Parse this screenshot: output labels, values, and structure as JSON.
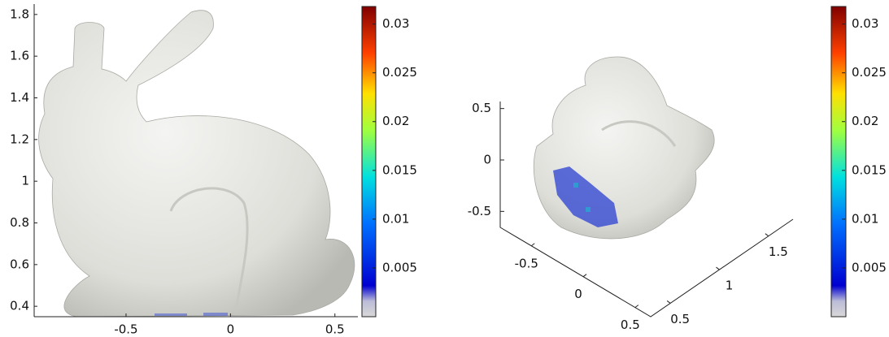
{
  "chart_data": [
    {
      "type": "surface",
      "xlim": [
        -0.94,
        0.61
      ],
      "xticks": [
        -0.5,
        0,
        0.5
      ],
      "ylim": [
        0.35,
        1.85
      ],
      "yticks": [
        0.4,
        0.6,
        0.8,
        1,
        1.2,
        1.4,
        1.6,
        1.8
      ],
      "colorbar": {
        "lim": [
          0,
          0.0318
        ],
        "ticks": [
          0.005,
          0.01,
          0.015,
          0.02,
          0.025,
          0.03
        ]
      }
    },
    {
      "type": "surface3d",
      "xlim": [
        -0.8,
        0.65
      ],
      "xticks": [
        -0.5,
        0,
        0.5
      ],
      "ylim": [
        0.3,
        1.75
      ],
      "yticks": [
        0.5,
        1,
        1.5
      ],
      "zlim": [
        -0.6,
        0.6
      ],
      "zticks": [
        -0.5,
        0,
        0.5
      ],
      "colorbar": {
        "lim": [
          0,
          0.0318
        ],
        "ticks": [
          0.005,
          0.01,
          0.015,
          0.02,
          0.025,
          0.03
        ]
      }
    }
  ]
}
